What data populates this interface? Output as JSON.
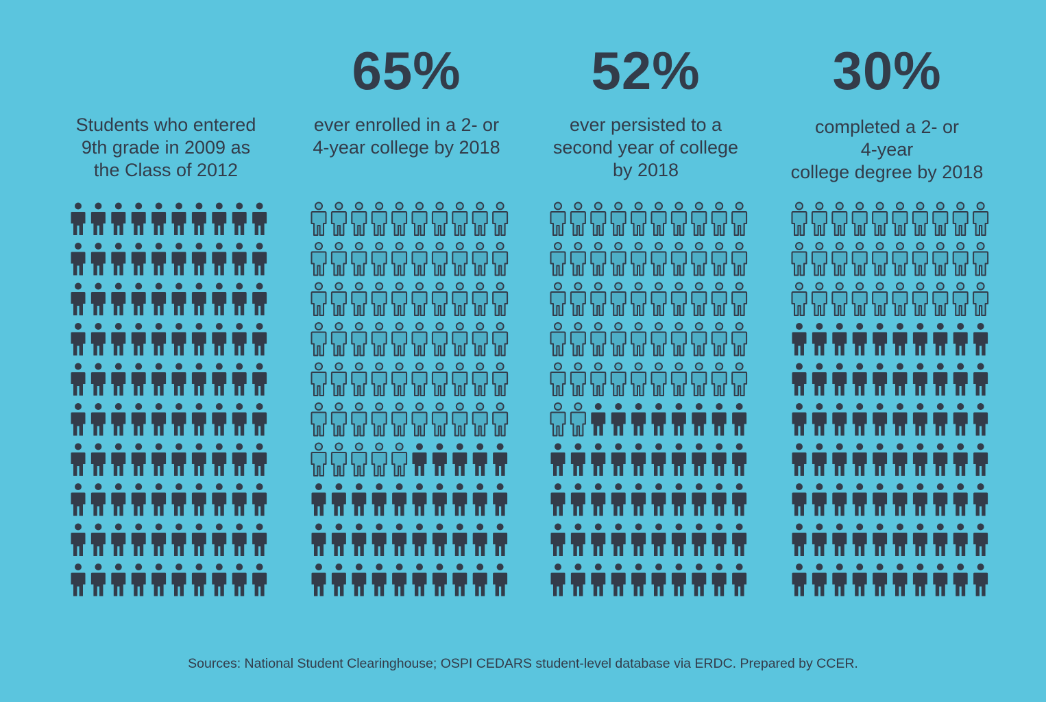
{
  "chart_data": {
    "type": "pictogram",
    "colors": {
      "background": "#5bc5de",
      "solid_person": "#333c4a",
      "outline_person_fill": "#4eafc7",
      "outline_person_stroke": "#333c4a"
    },
    "icon": "person-icon",
    "grid": {
      "rows": 10,
      "cols": 10
    },
    "panels": [
      {
        "percent_label": "",
        "value": 100,
        "caption": "Students who entered 9th grade in 2009 as the Class of 2012",
        "caption_lines": [
          "Students who entered",
          "9th grade in 2009 as",
          "the Class of 2012"
        ]
      },
      {
        "percent_label": "65%",
        "value": 65,
        "caption": "ever enrolled in a 2- or 4-year college by 2018",
        "caption_lines": [
          "ever enrolled in a 2- or",
          "4-year college by 2018"
        ]
      },
      {
        "percent_label": "52%",
        "value": 52,
        "caption": "ever persisted to a second year of college by 2018",
        "caption_lines": [
          "ever persisted to a",
          "second year of college",
          "by 2018"
        ]
      },
      {
        "percent_label": "30%",
        "value": 30,
        "caption": "completed a 2- or 4-year college degree by 2018",
        "caption_lines": [
          "completed a 2- or",
          "4-year",
          "college degree by 2018"
        ]
      }
    ]
  },
  "sources": "Sources: National Student Clearinghouse; OSPI CEDARS student-level database via ERDC. Prepared by CCER."
}
